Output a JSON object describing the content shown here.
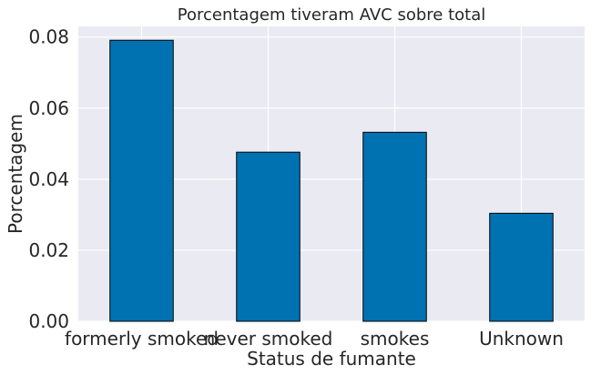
{
  "chart_data": {
    "type": "bar",
    "title": "Porcentagem tiveram AVC sobre total",
    "xlabel": "Status de fumante",
    "ylabel": "Porcentagem",
    "categories": [
      "formerly smoked",
      "never smoked",
      "smokes",
      "Unknown"
    ],
    "values": [
      0.0791,
      0.0476,
      0.0532,
      0.0304
    ],
    "ylim": [
      0,
      0.083
    ],
    "yticks": [
      "0.00",
      "0.02",
      "0.04",
      "0.06",
      "0.08"
    ],
    "grid": true,
    "colors": {
      "bar": "#0072B2",
      "bar_edge": "#000000",
      "plot_background": "#EAEAF2",
      "grid": "#FFFFFF"
    }
  }
}
